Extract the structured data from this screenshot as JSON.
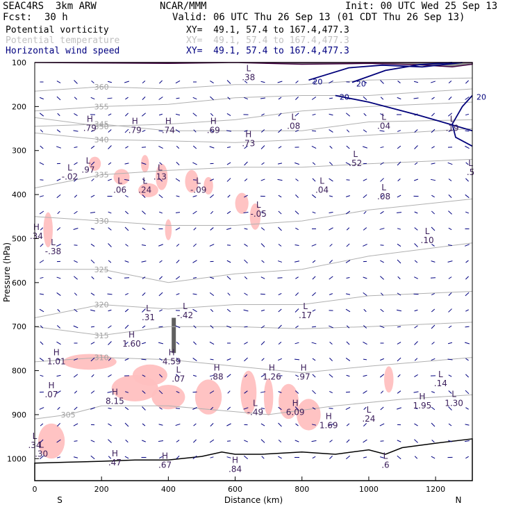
{
  "header": {
    "model": "SEAC4RS  3km ARW",
    "center": "NCAR/MMM",
    "init": "Init: 00 UTC Wed 25 Sep 13",
    "fcst_label": "Fcst:",
    "fcst_value": "30 h",
    "valid": "Valid: 06 UTC Thu 26 Sep 13 (01 CDT Thu 26 Sep 13)"
  },
  "legend": [
    {
      "name": "Potential vorticity",
      "xy": "XY=  49.1, 57.4 to 167.4,477.3",
      "color": "#000000"
    },
    {
      "name": "Potential temperature",
      "xy": "XY=  49.1, 57.4 to 167.4,477.3",
      "color": "#b4b4b4"
    },
    {
      "name": "Horizontal wind speed",
      "xy": "XY=  49.1, 57.4 to 167.4,477.3",
      "color": "#000080"
    }
  ],
  "chart_data": {
    "type": "cross-section",
    "xlabel": "Distance (km)",
    "ylabel": "Pressure (hPa)",
    "xlim": [
      0,
      1310
    ],
    "ylim": [
      1050,
      100
    ],
    "x_ticks": [
      "0",
      "200",
      "400",
      "600",
      "800",
      "1000",
      "1200"
    ],
    "x_tick_values": [
      0,
      200,
      400,
      600,
      800,
      1000,
      1200
    ],
    "y_ticks": [
      "100",
      "200",
      "300",
      "400",
      "500",
      "600",
      "700",
      "800",
      "900",
      "1000"
    ],
    "y_tick_values": [
      100,
      200,
      300,
      400,
      500,
      600,
      700,
      800,
      900,
      1000
    ],
    "x_end_labels": {
      "left": "S",
      "right": "N"
    },
    "theta_contours": [
      {
        "label": "360",
        "points": [
          [
            0,
            165
          ],
          [
            200,
            155
          ],
          [
            400,
            160
          ],
          [
            600,
            150
          ],
          [
            800,
            150
          ],
          [
            1000,
            140
          ],
          [
            1310,
            135
          ]
        ]
      },
      {
        "label": "355",
        "points": [
          [
            0,
            210
          ],
          [
            200,
            200
          ],
          [
            400,
            195
          ],
          [
            600,
            180
          ],
          [
            800,
            175
          ],
          [
            1000,
            175
          ],
          [
            1310,
            160
          ]
        ]
      },
      {
        "label": "350",
        "points": [
          [
            0,
            225
          ],
          [
            200,
            245
          ],
          [
            400,
            240
          ],
          [
            600,
            230
          ],
          [
            800,
            210
          ],
          [
            1000,
            200
          ],
          [
            1310,
            190
          ]
        ]
      },
      {
        "label": "345",
        "points": [
          [
            0,
            245
          ],
          [
            200,
            240
          ],
          [
            400,
            255
          ],
          [
            600,
            255
          ],
          [
            800,
            255
          ],
          [
            1000,
            235
          ],
          [
            1310,
            230
          ]
        ]
      },
      {
        "label": "340",
        "points": [
          [
            0,
            260
          ],
          [
            200,
            275
          ],
          [
            400,
            278
          ],
          [
            600,
            282
          ],
          [
            800,
            275
          ],
          [
            1000,
            265
          ],
          [
            1310,
            250
          ]
        ]
      },
      {
        "label": "335",
        "points": [
          [
            0,
            385
          ],
          [
            200,
            355
          ],
          [
            400,
            345
          ],
          [
            600,
            338
          ],
          [
            800,
            338
          ],
          [
            1000,
            330
          ],
          [
            1310,
            320
          ]
        ]
      },
      {
        "label": "330",
        "points": [
          [
            0,
            450
          ],
          [
            200,
            460
          ],
          [
            400,
            470
          ],
          [
            600,
            470
          ],
          [
            800,
            460
          ],
          [
            1000,
            435
          ],
          [
            1310,
            410
          ]
        ]
      },
      {
        "label": "325",
        "points": [
          [
            0,
            570
          ],
          [
            200,
            570
          ],
          [
            400,
            600
          ],
          [
            600,
            580
          ],
          [
            800,
            570
          ],
          [
            1000,
            540
          ],
          [
            1310,
            510
          ]
        ]
      },
      {
        "label": "320",
        "points": [
          [
            0,
            680
          ],
          [
            200,
            650
          ],
          [
            400,
            660
          ],
          [
            600,
            650
          ],
          [
            800,
            650
          ],
          [
            1000,
            630
          ],
          [
            1310,
            620
          ]
        ]
      },
      {
        "label": "315",
        "points": [
          [
            0,
            700
          ],
          [
            200,
            720
          ],
          [
            400,
            700
          ],
          [
            600,
            700
          ],
          [
            800,
            705
          ],
          [
            1000,
            700
          ],
          [
            1310,
            690
          ]
        ]
      },
      {
        "label": "310",
        "points": [
          [
            0,
            780
          ],
          [
            200,
            770
          ],
          [
            400,
            775
          ],
          [
            600,
            790
          ],
          [
            800,
            805
          ],
          [
            1000,
            790
          ],
          [
            1310,
            770
          ]
        ]
      },
      {
        "label": "305",
        "points": [
          [
            0,
            910
          ],
          [
            100,
            900
          ],
          [
            200,
            880
          ],
          [
            400,
            880
          ],
          [
            550,
            890
          ],
          [
            700,
            900
          ],
          [
            900,
            880
          ],
          [
            1100,
            865
          ],
          [
            1310,
            855
          ]
        ]
      }
    ],
    "wind_speed_contours": [
      {
        "label": "20",
        "points": [
          [
            820,
            140
          ],
          [
            940,
            112
          ],
          [
            1040,
            106
          ],
          [
            1160,
            110
          ],
          [
            1280,
            100
          ]
        ]
      },
      {
        "label": "20",
        "points": [
          [
            950,
            145
          ],
          [
            1050,
            118
          ],
          [
            1150,
            105
          ],
          [
            1250,
            100
          ]
        ]
      },
      {
        "label": "20",
        "points": [
          [
            900,
            175
          ],
          [
            1000,
            190
          ],
          [
            1150,
            220
          ],
          [
            1310,
            255
          ]
        ]
      },
      {
        "label": "20",
        "points": [
          [
            1310,
            175
          ],
          [
            1280,
            200
          ],
          [
            1250,
            240
          ],
          [
            1260,
            270
          ],
          [
            1310,
            290
          ]
        ]
      }
    ],
    "pv_extrema": [
      {
        "kind": "H",
        "value": ".79",
        "x": 165,
        "p": 235
      },
      {
        "kind": "L",
        "value": ".97",
        "x": 160,
        "p": 330
      },
      {
        "kind": "L",
        "value": "-.02",
        "x": 105,
        "p": 345
      },
      {
        "kind": "H",
        "value": ".79",
        "x": 300,
        "p": 240
      },
      {
        "kind": "H",
        "value": ".74",
        "x": 400,
        "p": 240
      },
      {
        "kind": "H",
        "value": ".69",
        "x": 535,
        "p": 240
      },
      {
        "kind": "H",
        "value": ".73",
        "x": 640,
        "p": 270
      },
      {
        "kind": "L",
        "value": ".38",
        "x": 640,
        "p": 120
      },
      {
        "kind": "L",
        "value": ".08",
        "x": 775,
        "p": 230
      },
      {
        "kind": "L",
        "value": ".04",
        "x": 1045,
        "p": 230
      },
      {
        "kind": "L",
        "value": ".19",
        "x": 1250,
        "p": 235
      },
      {
        "kind": "L",
        "value": ".52",
        "x": 960,
        "p": 315
      },
      {
        "kind": "L",
        "value": ".5",
        "x": 1305,
        "p": 335
      },
      {
        "kind": "L",
        "value": ".06",
        "x": 255,
        "p": 375
      },
      {
        "kind": "L",
        "value": ".13",
        "x": 375,
        "p": 345
      },
      {
        "kind": "L",
        "value": ".24",
        "x": 330,
        "p": 375
      },
      {
        "kind": "L",
        "value": "-.09",
        "x": 490,
        "p": 375
      },
      {
        "kind": "L",
        "value": ".04",
        "x": 860,
        "p": 375
      },
      {
        "kind": "L",
        "value": ".08",
        "x": 1045,
        "p": 390
      },
      {
        "kind": "L",
        "value": "-.05",
        "x": 670,
        "p": 430
      },
      {
        "kind": "H",
        "value": ".34",
        "x": 5,
        "p": 480
      },
      {
        "kind": "L",
        "value": "-.38",
        "x": 55,
        "p": 515
      },
      {
        "kind": "L",
        "value": ".10",
        "x": 1175,
        "p": 490
      },
      {
        "kind": "L",
        "value": ".31",
        "x": 340,
        "p": 665
      },
      {
        "kind": "L",
        "value": "-.42",
        "x": 450,
        "p": 660
      },
      {
        "kind": "L",
        "value": ".17",
        "x": 810,
        "p": 660
      },
      {
        "kind": "H",
        "value": "1.60",
        "x": 290,
        "p": 725
      },
      {
        "kind": "H",
        "value": "1.01",
        "x": 65,
        "p": 765
      },
      {
        "kind": "H",
        "value": "4.59",
        "x": 410,
        "p": 765
      },
      {
        "kind": "L",
        "value": ".07",
        "x": 430,
        "p": 805
      },
      {
        "kind": "H",
        "value": ".88",
        "x": 545,
        "p": 800
      },
      {
        "kind": "H",
        "value": "1.26",
        "x": 710,
        "p": 800
      },
      {
        "kind": "H",
        "value": ".97",
        "x": 805,
        "p": 800
      },
      {
        "kind": "L",
        "value": ".14",
        "x": 1215,
        "p": 815
      },
      {
        "kind": "H",
        "value": ".07",
        "x": 50,
        "p": 840
      },
      {
        "kind": "H",
        "value": "8.15",
        "x": 240,
        "p": 855
      },
      {
        "kind": "H",
        "value": "1.95",
        "x": 1160,
        "p": 865
      },
      {
        "kind": "L",
        "value": "1.30",
        "x": 1255,
        "p": 860
      },
      {
        "kind": "L",
        "value": "-.49",
        "x": 660,
        "p": 880
      },
      {
        "kind": "H",
        "value": "6.09",
        "x": 780,
        "p": 880
      },
      {
        "kind": "L",
        "value": ".24",
        "x": 1000,
        "p": 895
      },
      {
        "kind": "H",
        "value": "1.69",
        "x": 880,
        "p": 910
      },
      {
        "kind": "L",
        "value": ".34",
        "x": 0,
        "p": 955
      },
      {
        "kind": "L",
        "value": ".30",
        "x": 20,
        "p": 975
      },
      {
        "kind": "H",
        "value": ".47",
        "x": 240,
        "p": 995
      },
      {
        "kind": "H",
        "value": ".67",
        "x": 390,
        "p": 1000
      },
      {
        "kind": "H",
        "value": ".84",
        "x": 600,
        "p": 1010
      },
      {
        "kind": "L",
        "value": ".6",
        "x": 1050,
        "p": 1000
      }
    ]
  }
}
